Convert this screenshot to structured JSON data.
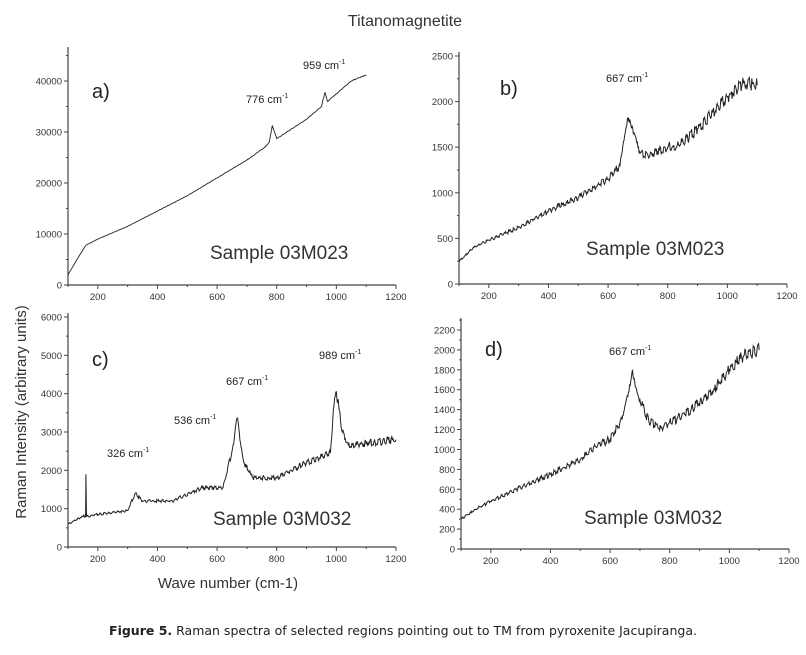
{
  "title": "Titanomagnetite",
  "ylabel": "Raman Intensity (arbitrary units)",
  "xlabel": "Wave number (cm-1)",
  "caption": {
    "bold": "Figure 5.",
    "text": " Raman spectra of selected regions pointing out to TM from pyroxenite Jacupiranga."
  },
  "chart_data": [
    {
      "type": "line",
      "panel": "a)",
      "sample": "Sample 03M023",
      "xlim": [
        100,
        1200
      ],
      "ylim": [
        0,
        45000
      ],
      "xticks": [
        200,
        400,
        600,
        800,
        1000,
        1200
      ],
      "yticks": [
        0,
        10000,
        20000,
        30000,
        40000
      ],
      "annotations": [
        {
          "text": "776 cm",
          "sup": "-1"
        },
        {
          "text": "959 cm",
          "sup": "-1"
        }
      ],
      "x": [
        100,
        130,
        160,
        200,
        300,
        400,
        500,
        600,
        700,
        760,
        775,
        785,
        800,
        900,
        950,
        962,
        970,
        1000,
        1050,
        1100
      ],
      "y": [
        2000,
        5000,
        7800,
        9000,
        11500,
        14500,
        17500,
        21000,
        24500,
        27000,
        28000,
        31300,
        28700,
        32500,
        35000,
        37800,
        36000,
        37500,
        40000,
        41200
      ]
    },
    {
      "type": "line",
      "panel": "b)",
      "sample": "Sample 03M023",
      "xlim": [
        100,
        1200
      ],
      "ylim": [
        0,
        2500
      ],
      "xticks": [
        200,
        400,
        600,
        800,
        1000,
        1200
      ],
      "yticks": [
        0,
        500,
        1000,
        1500,
        2000,
        2500
      ],
      "annotations": [
        {
          "text": "667 cm",
          "sup": "-1"
        }
      ],
      "x": [
        100,
        150,
        200,
        300,
        400,
        500,
        600,
        640,
        667,
        700,
        720,
        800,
        830,
        900,
        1000,
        1050,
        1100
      ],
      "y": [
        250,
        400,
        480,
        620,
        800,
        950,
        1150,
        1300,
        1800,
        1500,
        1400,
        1500,
        1500,
        1700,
        2050,
        2200,
        2180
      ]
    },
    {
      "type": "line",
      "panel": "c)",
      "sample": "Sample 03M032",
      "xlim": [
        100,
        1200
      ],
      "ylim": [
        0,
        6000
      ],
      "xticks": [
        200,
        400,
        600,
        800,
        1000,
        1200
      ],
      "yticks": [
        0,
        1000,
        2000,
        3000,
        4000,
        5000,
        6000
      ],
      "annotations": [
        {
          "text": "326 cm",
          "sup": "-1"
        },
        {
          "text": "536 cm",
          "sup": "-1"
        },
        {
          "text": "667 cm",
          "sup": "-1"
        },
        {
          "text": "989 cm",
          "sup": "-1"
        }
      ],
      "x": [
        100,
        150,
        159,
        160,
        162,
        200,
        300,
        326,
        350,
        450,
        550,
        620,
        650,
        667,
        690,
        720,
        800,
        900,
        980,
        990,
        1000,
        1020,
        1040,
        1100,
        1200
      ],
      "y": [
        600,
        800,
        800,
        1900,
        800,
        850,
        950,
        1400,
        1200,
        1200,
        1550,
        1550,
        2500,
        3350,
        2200,
        1800,
        1800,
        2200,
        2450,
        3600,
        4050,
        3000,
        2650,
        2700,
        2800
      ]
    },
    {
      "type": "line",
      "panel": "d)",
      "sample": "Sample 03M032",
      "xlim": [
        100,
        1200
      ],
      "ylim": [
        0,
        2200
      ],
      "xticks": [
        200,
        400,
        600,
        800,
        1000,
        1200
      ],
      "yticks": [
        0,
        200,
        400,
        600,
        800,
        1000,
        1200,
        1400,
        1600,
        1800,
        2000,
        2200
      ],
      "annotations": [
        {
          "text": "667 cm",
          "sup": "-1"
        }
      ],
      "x": [
        100,
        150,
        200,
        300,
        400,
        500,
        550,
        600,
        640,
        675,
        700,
        730,
        770,
        850,
        950,
        1000,
        1050,
        1100
      ],
      "y": [
        300,
        400,
        480,
        620,
        750,
        900,
        1030,
        1100,
        1300,
        1800,
        1500,
        1280,
        1220,
        1350,
        1600,
        1800,
        1950,
        2000
      ]
    }
  ]
}
